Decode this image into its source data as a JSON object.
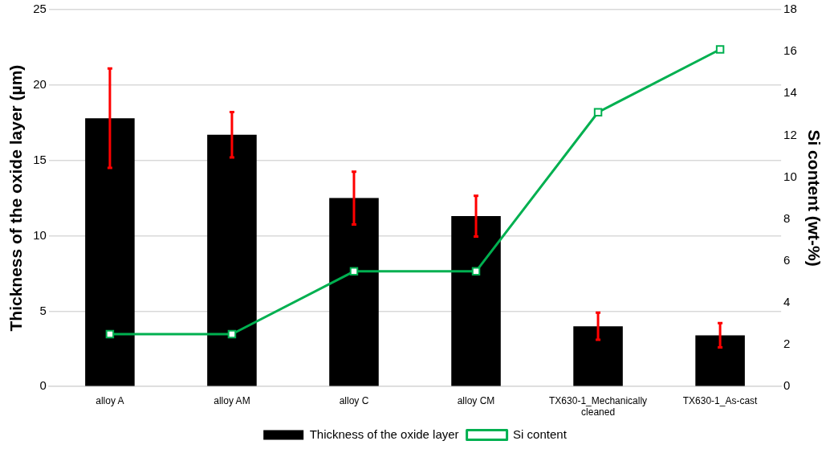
{
  "chart_data": {
    "type": "bar",
    "ylabel": "Thickness of the oxide layer (µm)",
    "y2label": "Si content (wt-%)",
    "categories": [
      "alloy A",
      "alloy AM",
      "alloy C",
      "alloy CM",
      "TX630-1_Mechanically cleaned",
      "TX630-1_As-cast"
    ],
    "series": [
      {
        "name": "Thickness of the oxide layer",
        "color": "#000000",
        "values": [
          17.8,
          16.7,
          12.5,
          11.3,
          4.0,
          3.4
        ],
        "errors": [
          3.3,
          1.5,
          1.75,
          1.35,
          0.9,
          0.8
        ]
      },
      {
        "name": "Si content",
        "type": "line",
        "axis": "y2",
        "color": "#00b050",
        "values": [
          2.5,
          2.5,
          5.5,
          5.5,
          13.1,
          16.1
        ],
        "marker": "square",
        "line_style": "solid"
      }
    ],
    "ylim": [
      0,
      25
    ],
    "yticks": [
      0,
      5,
      10,
      15,
      20,
      25
    ],
    "y2lim": [
      0,
      18
    ],
    "y2ticks": [
      0,
      2,
      4,
      6,
      8,
      10,
      12,
      14,
      16,
      18
    ],
    "grid": "y",
    "legend": "bottom"
  }
}
